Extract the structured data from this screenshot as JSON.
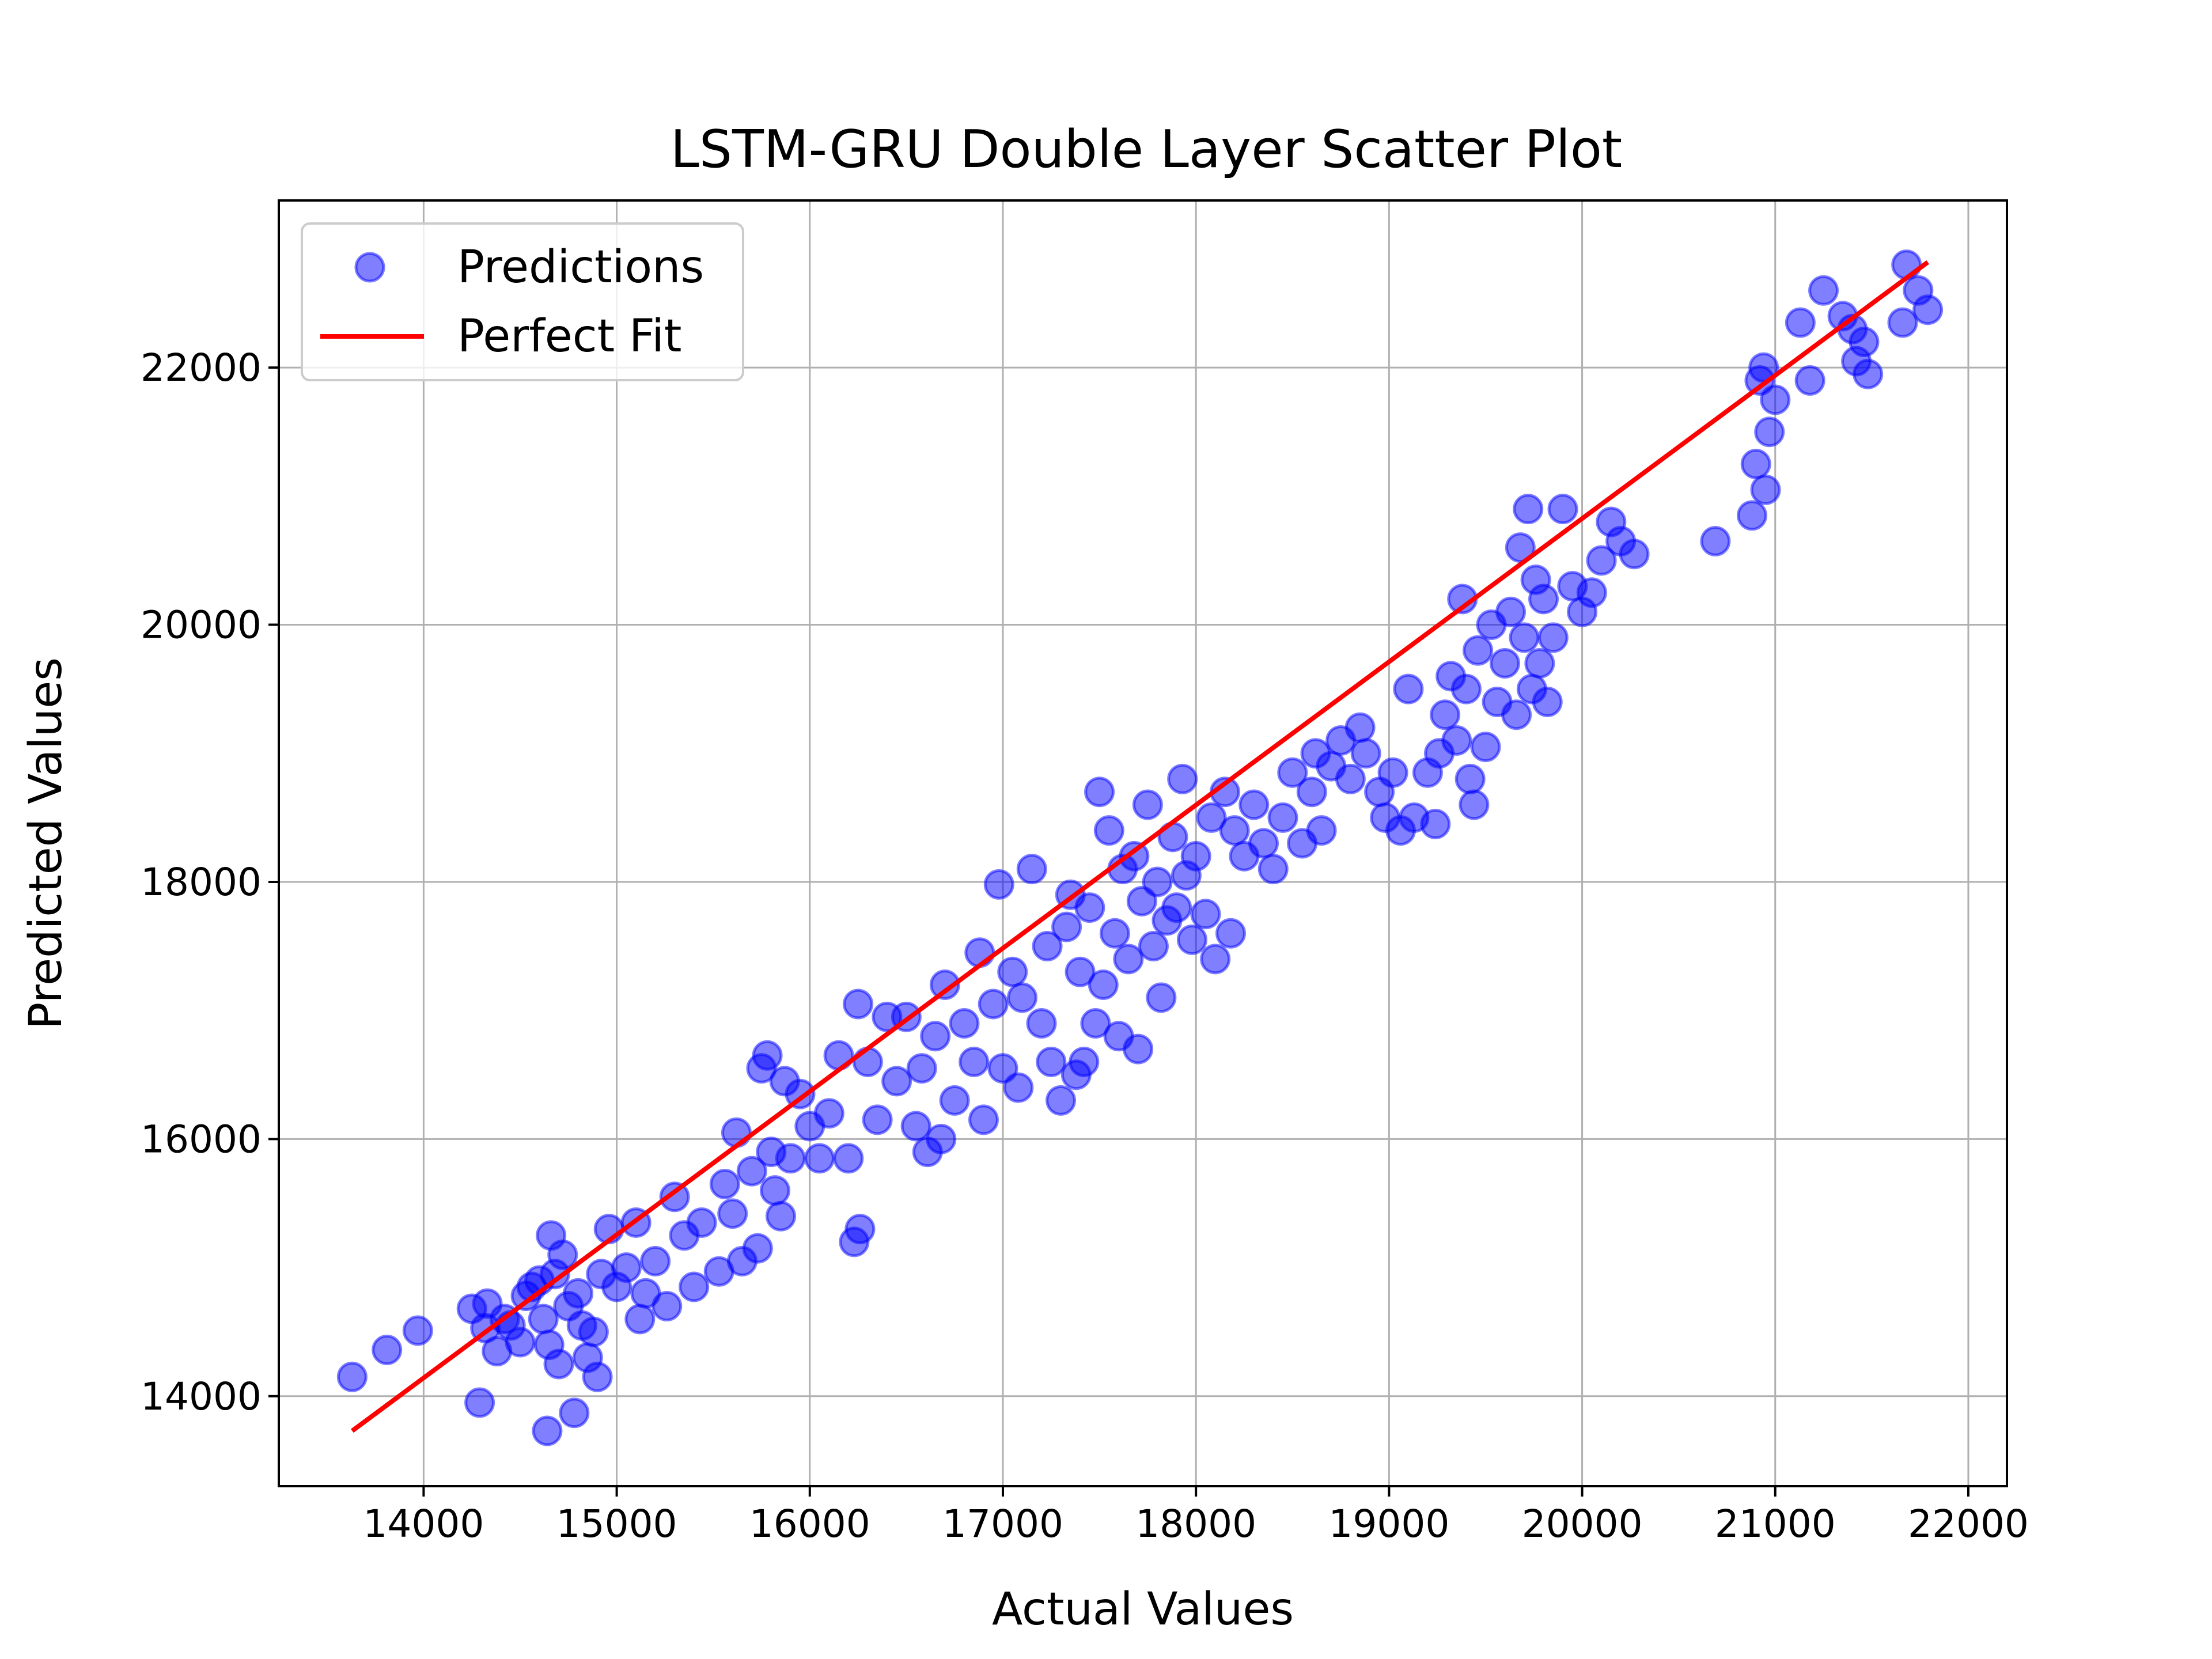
{
  "chart_data": {
    "type": "scatter",
    "title": "LSTM-GRU Double Layer Scatter Plot",
    "xlabel": "Actual Values",
    "ylabel": "Predicted Values",
    "xlim": [
      13250,
      22200
    ],
    "ylim": [
      13300,
      23300
    ],
    "xticks": [
      14000,
      15000,
      16000,
      17000,
      18000,
      19000,
      20000,
      21000,
      22000
    ],
    "yticks": [
      14000,
      16000,
      18000,
      20000,
      22000
    ],
    "xtick_labels": [
      "14000",
      "15000",
      "16000",
      "17000",
      "18000",
      "19000",
      "20000",
      "21000",
      "22000"
    ],
    "ytick_labels": [
      "14000",
      "16000",
      "18000",
      "20000",
      "22000"
    ],
    "grid": true,
    "legend_position": "top-left",
    "legend": [
      "Predictions",
      "Perfect Fit"
    ],
    "colors": {
      "points": "#0000ff",
      "line": "#ff0000",
      "grid": "#b0b0b0"
    },
    "series": [
      {
        "name": "Predictions",
        "kind": "scatter",
        "points": [
          [
            13630,
            14150
          ],
          [
            13810,
            14360
          ],
          [
            13970,
            14510
          ],
          [
            14250,
            14680
          ],
          [
            14290,
            13950
          ],
          [
            14320,
            14530
          ],
          [
            14330,
            14720
          ],
          [
            14380,
            14350
          ],
          [
            14420,
            14600
          ],
          [
            14450,
            14550
          ],
          [
            14500,
            14420
          ],
          [
            14530,
            14780
          ],
          [
            14560,
            14850
          ],
          [
            14600,
            14900
          ],
          [
            14620,
            14600
          ],
          [
            14640,
            13730
          ],
          [
            14650,
            14400
          ],
          [
            14660,
            15250
          ],
          [
            14680,
            14950
          ],
          [
            14700,
            14250
          ],
          [
            14720,
            15100
          ],
          [
            14750,
            14700
          ],
          [
            14780,
            13870
          ],
          [
            14800,
            14800
          ],
          [
            14820,
            14550
          ],
          [
            14850,
            14300
          ],
          [
            14880,
            14500
          ],
          [
            14900,
            14150
          ],
          [
            14920,
            14950
          ],
          [
            14960,
            15300
          ],
          [
            15000,
            14850
          ],
          [
            15050,
            15000
          ],
          [
            15100,
            15350
          ],
          [
            15120,
            14600
          ],
          [
            15150,
            14800
          ],
          [
            15200,
            15050
          ],
          [
            15260,
            14700
          ],
          [
            15300,
            15550
          ],
          [
            15350,
            15250
          ],
          [
            15400,
            14850
          ],
          [
            15440,
            15350
          ],
          [
            15530,
            14970
          ],
          [
            15560,
            15650
          ],
          [
            15600,
            15420
          ],
          [
            15620,
            16050
          ],
          [
            15650,
            15050
          ],
          [
            15700,
            15750
          ],
          [
            15730,
            15150
          ],
          [
            15750,
            16550
          ],
          [
            15780,
            16650
          ],
          [
            15800,
            15900
          ],
          [
            15820,
            15600
          ],
          [
            15850,
            15400
          ],
          [
            15870,
            16450
          ],
          [
            15900,
            15850
          ],
          [
            15950,
            16350
          ],
          [
            16000,
            16100
          ],
          [
            16050,
            15850
          ],
          [
            16100,
            16200
          ],
          [
            16150,
            16650
          ],
          [
            16200,
            15850
          ],
          [
            16230,
            15200
          ],
          [
            16250,
            17050
          ],
          [
            16260,
            15300
          ],
          [
            16300,
            16600
          ],
          [
            16350,
            16150
          ],
          [
            16400,
            16950
          ],
          [
            16450,
            16450
          ],
          [
            16500,
            16950
          ],
          [
            16550,
            16100
          ],
          [
            16580,
            16550
          ],
          [
            16610,
            15900
          ],
          [
            16650,
            16800
          ],
          [
            16680,
            16000
          ],
          [
            16700,
            17200
          ],
          [
            16750,
            16300
          ],
          [
            16800,
            16900
          ],
          [
            16850,
            16600
          ],
          [
            16880,
            17450
          ],
          [
            16900,
            16150
          ],
          [
            16950,
            17050
          ],
          [
            16980,
            17980
          ],
          [
            17000,
            16550
          ],
          [
            17050,
            17300
          ],
          [
            17080,
            16400
          ],
          [
            17100,
            17100
          ],
          [
            17150,
            18100
          ],
          [
            17200,
            16900
          ],
          [
            17230,
            17500
          ],
          [
            17250,
            16600
          ],
          [
            17300,
            16300
          ],
          [
            17330,
            17650
          ],
          [
            17350,
            17900
          ],
          [
            17380,
            16500
          ],
          [
            17400,
            17300
          ],
          [
            17420,
            16600
          ],
          [
            17450,
            17800
          ],
          [
            17480,
            16900
          ],
          [
            17500,
            18700
          ],
          [
            17520,
            17200
          ],
          [
            17550,
            18400
          ],
          [
            17580,
            17600
          ],
          [
            17600,
            16800
          ],
          [
            17620,
            18100
          ],
          [
            17650,
            17400
          ],
          [
            17680,
            18200
          ],
          [
            17700,
            16700
          ],
          [
            17720,
            17850
          ],
          [
            17750,
            18600
          ],
          [
            17780,
            17500
          ],
          [
            17800,
            18000
          ],
          [
            17820,
            17100
          ],
          [
            17850,
            17700
          ],
          [
            17880,
            18350
          ],
          [
            17900,
            17800
          ],
          [
            17930,
            18800
          ],
          [
            17950,
            18050
          ],
          [
            17980,
            17550
          ],
          [
            18000,
            18200
          ],
          [
            18050,
            17750
          ],
          [
            18080,
            18500
          ],
          [
            18100,
            17400
          ],
          [
            18150,
            18700
          ],
          [
            18180,
            17600
          ],
          [
            18200,
            18400
          ],
          [
            18250,
            18200
          ],
          [
            18300,
            18600
          ],
          [
            18350,
            18300
          ],
          [
            18400,
            18100
          ],
          [
            18450,
            18500
          ],
          [
            18500,
            18850
          ],
          [
            18550,
            18300
          ],
          [
            18600,
            18700
          ],
          [
            18620,
            19000
          ],
          [
            18650,
            18400
          ],
          [
            18700,
            18900
          ],
          [
            18750,
            19100
          ],
          [
            18800,
            18800
          ],
          [
            18850,
            19200
          ],
          [
            18880,
            19000
          ],
          [
            18950,
            18700
          ],
          [
            18980,
            18500
          ],
          [
            19020,
            18850
          ],
          [
            19060,
            18400
          ],
          [
            19100,
            19500
          ],
          [
            19130,
            18500
          ],
          [
            19200,
            18850
          ],
          [
            19240,
            18450
          ],
          [
            19260,
            19000
          ],
          [
            19290,
            19300
          ],
          [
            19320,
            19600
          ],
          [
            19350,
            19100
          ],
          [
            19380,
            20200
          ],
          [
            19400,
            19500
          ],
          [
            19420,
            18800
          ],
          [
            19440,
            18600
          ],
          [
            19460,
            19800
          ],
          [
            19500,
            19050
          ],
          [
            19530,
            20000
          ],
          [
            19560,
            19400
          ],
          [
            19600,
            19700
          ],
          [
            19630,
            20100
          ],
          [
            19660,
            19300
          ],
          [
            19680,
            20600
          ],
          [
            19700,
            19900
          ],
          [
            19720,
            20900
          ],
          [
            19740,
            19500
          ],
          [
            19760,
            20350
          ],
          [
            19780,
            19700
          ],
          [
            19800,
            20200
          ],
          [
            19820,
            19400
          ],
          [
            19850,
            19900
          ],
          [
            19900,
            20900
          ],
          [
            19950,
            20300
          ],
          [
            20000,
            20100
          ],
          [
            20050,
            20250
          ],
          [
            20100,
            20500
          ],
          [
            20150,
            20800
          ],
          [
            20200,
            20650
          ],
          [
            20270,
            20550
          ],
          [
            20690,
            20650
          ],
          [
            20880,
            20850
          ],
          [
            20900,
            21250
          ],
          [
            20920,
            21900
          ],
          [
            20940,
            22000
          ],
          [
            20950,
            21050
          ],
          [
            20970,
            21500
          ],
          [
            21000,
            21750
          ],
          [
            21130,
            22350
          ],
          [
            21180,
            21900
          ],
          [
            21250,
            22600
          ],
          [
            21350,
            22400
          ],
          [
            21400,
            22300
          ],
          [
            21420,
            22050
          ],
          [
            21460,
            22200
          ],
          [
            21480,
            21950
          ],
          [
            21660,
            22350
          ],
          [
            21680,
            22800
          ],
          [
            21740,
            22600
          ],
          [
            21790,
            22450
          ]
        ]
      },
      {
        "name": "Perfect Fit",
        "kind": "line",
        "points": [
          [
            13630,
            13730
          ],
          [
            21790,
            22820
          ]
        ]
      }
    ]
  }
}
